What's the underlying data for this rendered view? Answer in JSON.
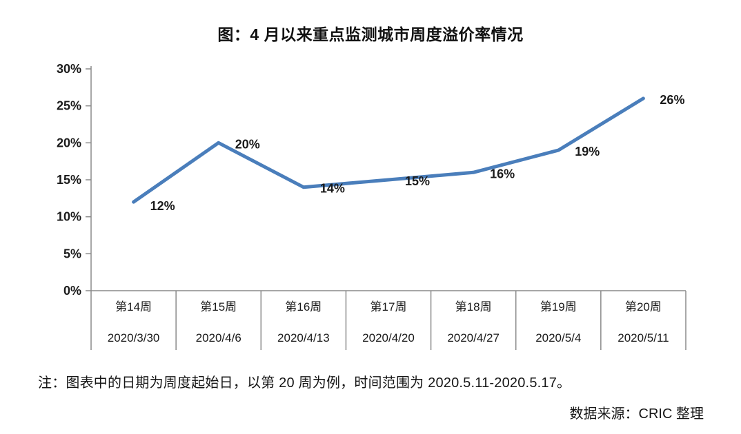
{
  "title": "图：4 月以来重点监测城市周度溢价率情况",
  "note": "注：图表中的日期为周度起始日，以第 20 周为例，时间范围为 2020.5.11-2020.5.17。",
  "source": "数据来源：CRIC 整理",
  "colors": {
    "line": "#4a7ebb",
    "axis": "#8a8a8a",
    "text": "#1a1a1a"
  },
  "chart_data": {
    "type": "line",
    "title": "图：4 月以来重点监测城市周度溢价率情况",
    "categories": [
      "第14周",
      "第15周",
      "第16周",
      "第17周",
      "第18周",
      "第19周",
      "第20周"
    ],
    "category_dates": [
      "2020/3/30",
      "2020/4/6",
      "2020/4/13",
      "2020/4/20",
      "2020/4/27",
      "2020/5/4",
      "2020/5/11"
    ],
    "series": [
      {
        "name": "周度溢价率",
        "values": [
          12,
          20,
          14,
          15,
          16,
          19,
          26
        ],
        "point_labels": [
          "12%",
          "20%",
          "14%",
          "15%",
          "16%",
          "19%",
          "26%"
        ]
      }
    ],
    "xlabel": "",
    "ylabel": "",
    "ylim": [
      0,
      30
    ],
    "ytick_step": 5,
    "ytick_labels": [
      "0%",
      "5%",
      "10%",
      "15%",
      "20%",
      "25%",
      "30%"
    ],
    "grid": false,
    "legend_position": "none",
    "line_color": "#4a7ebb",
    "axis_color": "#8a8a8a"
  }
}
